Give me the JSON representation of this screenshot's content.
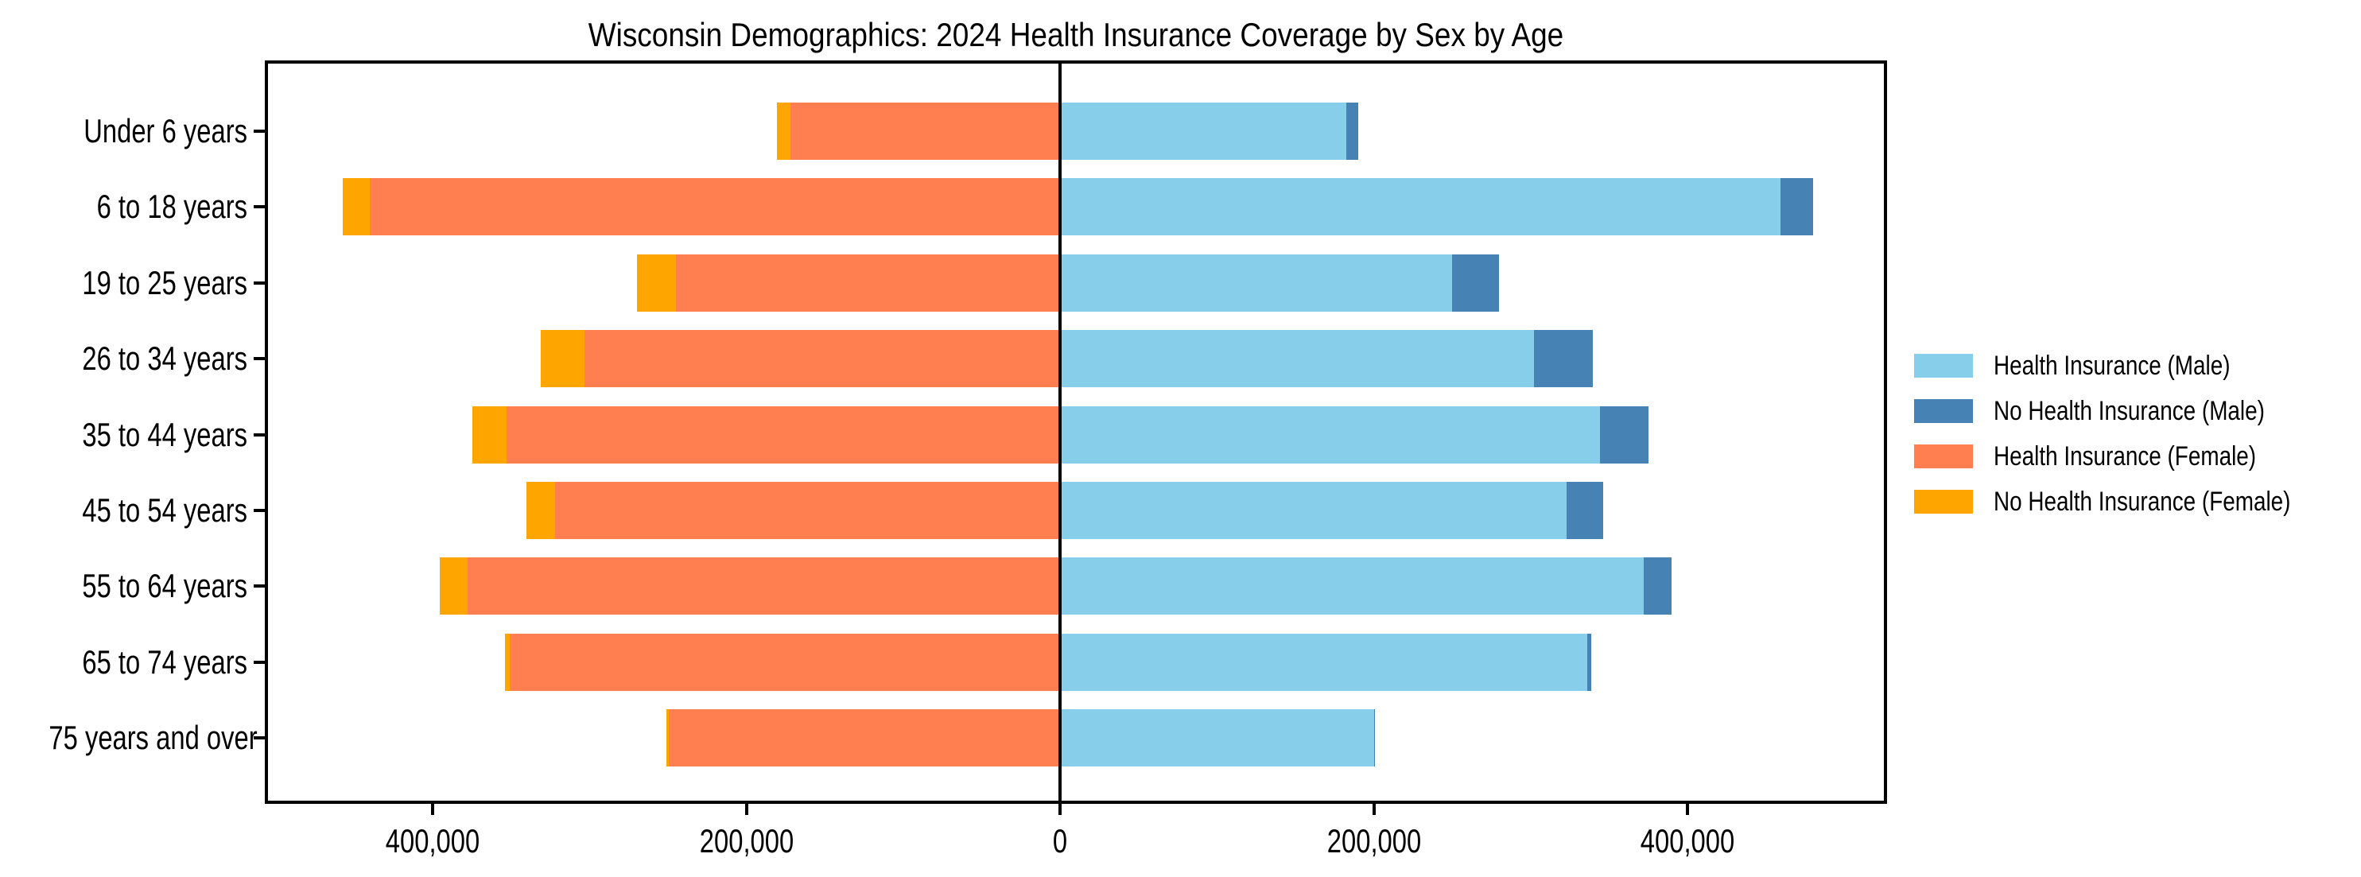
{
  "title": "Wisconsin Demographics: 2024 Health Insurance Coverage by Sex by Age",
  "colors": {
    "axis": "#000000",
    "background": "#ffffff",
    "male_insured": "#87CEEB",
    "male_uninsured": "#4682B4",
    "female_insured": "#FF7F50",
    "female_uninsured": "#FFA500"
  },
  "chart_data": {
    "type": "bar",
    "orientation": "horizontal-diverging-stacked",
    "title": "Wisconsin Demographics: 2024 Health Insurance Coverage by Sex by Age",
    "xlabel": "",
    "ylabel": "",
    "grid": false,
    "legend_position": "center-right-outside",
    "categories": [
      "Under 6 years",
      "6 to 18 years",
      "19 to 25 years",
      "26 to 34 years",
      "35 to 44 years",
      "45 to 54 years",
      "55 to 64 years",
      "65 to 74 years",
      "75 years and over"
    ],
    "series": [
      {
        "name": "Health Insurance (Male)",
        "side": "right",
        "stack_order": 1,
        "color": "#87CEEB",
        "values": [
          182500,
          459000,
          250000,
          302000,
          344000,
          323000,
          372000,
          336000,
          200000
        ]
      },
      {
        "name": "No Health Insurance (Male)",
        "side": "right",
        "stack_order": 2,
        "color": "#4682B4",
        "values": [
          7700,
          21000,
          29500,
          37500,
          31000,
          23000,
          17500,
          2500,
          800
        ]
      },
      {
        "name": "Health Insurance (Female)",
        "side": "left",
        "stack_order": 1,
        "color": "#FF7F50",
        "values": [
          172000,
          440000,
          245000,
          303500,
          353000,
          322000,
          378000,
          351000,
          249500
        ]
      },
      {
        "name": "No Health Insurance (Female)",
        "side": "left",
        "stack_order": 2,
        "color": "#FFA500",
        "values": [
          8600,
          17500,
          25000,
          27500,
          21500,
          18500,
          17500,
          3000,
          1500
        ]
      }
    ],
    "xlim": [
      -505000,
      525000
    ],
    "xticks": [
      {
        "value": -400000,
        "label": "400,000"
      },
      {
        "value": -200000,
        "label": "200,000"
      },
      {
        "value": 0,
        "label": "0"
      },
      {
        "value": 200000,
        "label": "200,000"
      },
      {
        "value": 400000,
        "label": "400,000"
      }
    ],
    "zero_line": true
  }
}
